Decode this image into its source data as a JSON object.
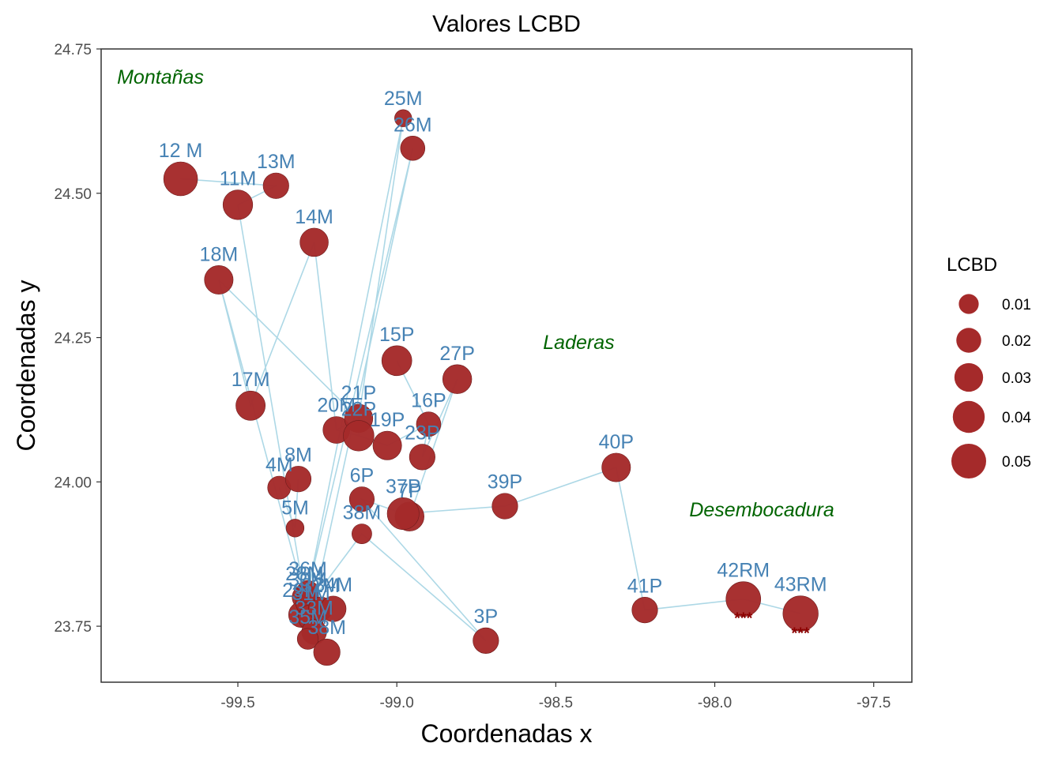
{
  "chart_data": {
    "type": "scatter",
    "title": "Valores LCBD",
    "xlabel": "Coordenadas x",
    "ylabel": "Coordenadas y",
    "xlim": [
      -99.93,
      -97.38
    ],
    "ylim": [
      23.653,
      24.75
    ],
    "x_ticks": [
      -99.5,
      -99.0,
      -98.5,
      -98.0,
      -97.5
    ],
    "x_tick_labels": [
      "-99.5",
      "-99.0",
      "-98.5",
      "-98.0",
      "-97.5"
    ],
    "y_ticks": [
      23.75,
      24.0,
      24.25,
      24.5,
      24.75
    ],
    "y_tick_labels": [
      "23.75",
      "24.00",
      "24.25",
      "24.50",
      "24.75"
    ],
    "grid": false,
    "colors": {
      "point": "#A52A2A",
      "label": "#4682B4",
      "path": "#ADD8E6",
      "region": "#006400",
      "significance": "#8B0000"
    },
    "legend": {
      "title": "LCBD",
      "position": "right",
      "values": [
        0.01,
        0.02,
        0.03,
        0.04,
        0.05
      ],
      "labels": [
        "0.01",
        "0.02",
        "0.03",
        "0.04",
        "0.05"
      ]
    },
    "regions": [
      {
        "label": "Montañas",
        "x": -99.88,
        "y": 24.69
      },
      {
        "label": "Laderas",
        "x": -98.54,
        "y": 24.23
      },
      {
        "label": "Desembocadura",
        "x": -98.08,
        "y": 23.94
      }
    ],
    "points": [
      {
        "label": "3P",
        "x": -98.72,
        "y": 23.725,
        "lcbd": 0.022
      },
      {
        "label": "4M",
        "x": -99.37,
        "y": 23.99,
        "lcbd": 0.016
      },
      {
        "label": "5M",
        "x": -99.32,
        "y": 23.92,
        "lcbd": 0.007
      },
      {
        "label": "6P",
        "x": -99.11,
        "y": 23.97,
        "lcbd": 0.02
      },
      {
        "label": "7P",
        "x": -98.96,
        "y": 23.94,
        "lcbd": 0.031
      },
      {
        "label": "8M",
        "x": -99.31,
        "y": 24.005,
        "lcbd": 0.022
      },
      {
        "label": "11M",
        "x": -99.5,
        "y": 24.48,
        "lcbd": 0.033
      },
      {
        "label": "12 M",
        "x": -99.68,
        "y": 24.525,
        "lcbd": 0.047
      },
      {
        "label": "13M",
        "x": -99.38,
        "y": 24.513,
        "lcbd": 0.022
      },
      {
        "label": "14M",
        "x": -99.26,
        "y": 24.415,
        "lcbd": 0.029
      },
      {
        "label": "15P",
        "x": -99.0,
        "y": 24.21,
        "lcbd": 0.034
      },
      {
        "label": "16P",
        "x": -98.9,
        "y": 24.1,
        "lcbd": 0.019
      },
      {
        "label": "17M",
        "x": -99.46,
        "y": 24.132,
        "lcbd": 0.032
      },
      {
        "label": "18M",
        "x": -99.56,
        "y": 24.35,
        "lcbd": 0.03
      },
      {
        "label": "19P",
        "x": -99.03,
        "y": 24.063,
        "lcbd": 0.03
      },
      {
        "label": "20M",
        "x": -99.19,
        "y": 24.09,
        "lcbd": 0.025
      },
      {
        "label": "21P",
        "x": -99.12,
        "y": 24.11,
        "lcbd": 0.029
      },
      {
        "label": "22P",
        "x": -99.12,
        "y": 24.08,
        "lcbd": 0.036
      },
      {
        "label": "23P",
        "x": -98.92,
        "y": 24.043,
        "lcbd": 0.022
      },
      {
        "label": "25M",
        "x": -98.98,
        "y": 24.63,
        "lcbd": 0.006
      },
      {
        "label": "26M",
        "x": -98.95,
        "y": 24.578,
        "lcbd": 0.019
      },
      {
        "label": "27P",
        "x": -98.81,
        "y": 24.178,
        "lcbd": 0.031
      },
      {
        "label": "28M",
        "x": -99.29,
        "y": 23.8,
        "lcbd": 0.02
      },
      {
        "label": "29M",
        "x": -99.3,
        "y": 23.77,
        "lcbd": 0.022
      },
      {
        "label": "30M",
        "x": -99.28,
        "y": 23.79,
        "lcbd": 0.018
      },
      {
        "label": "31M",
        "x": -99.27,
        "y": 23.765,
        "lcbd": 0.022
      },
      {
        "label": "32M",
        "x": -99.24,
        "y": 23.78,
        "lcbd": 0.018
      },
      {
        "label": "33M",
        "x": -99.26,
        "y": 23.74,
        "lcbd": 0.02
      },
      {
        "label": "34M",
        "x": -99.2,
        "y": 23.78,
        "lcbd": 0.022
      },
      {
        "label": "35M",
        "x": -99.28,
        "y": 23.728,
        "lcbd": 0.012
      },
      {
        "label": "36M",
        "x": -99.28,
        "y": 23.81,
        "lcbd": 0.014
      },
      {
        "label": "37P",
        "x": -98.98,
        "y": 23.945,
        "lcbd": 0.04
      },
      {
        "label": "38M",
        "x": -99.11,
        "y": 23.91,
        "lcbd": 0.01
      },
      {
        "label": "39P",
        "x": -98.66,
        "y": 23.958,
        "lcbd": 0.022
      },
      {
        "label": "40P",
        "x": -98.31,
        "y": 24.025,
        "lcbd": 0.03
      },
      {
        "label": "41P",
        "x": -98.22,
        "y": 23.778,
        "lcbd": 0.022
      },
      {
        "label": "42RM",
        "x": -97.91,
        "y": 23.797,
        "lcbd": 0.05,
        "significance": "***"
      },
      {
        "label": "43RM",
        "x": -97.73,
        "y": 23.772,
        "lcbd": 0.052,
        "significance": "***"
      },
      {
        "label": "38M",
        "x": -99.22,
        "y": 23.705,
        "lcbd": 0.024
      }
    ],
    "path_order": [
      "12 M",
      "13M",
      "11M",
      "28M",
      "18M",
      "17M",
      "14M",
      "20M",
      "21P",
      "25M",
      "36M",
      "26M",
      "31M",
      "34M",
      "35M",
      "33M",
      "29M",
      "38M",
      "3P",
      "6P",
      "37P",
      "39P",
      "40P",
      "41P",
      "42RM",
      "43RM"
    ],
    "secondary_paths": [
      [
        "15P",
        "16P",
        "23P",
        "27P",
        "7P"
      ],
      [
        "20M",
        "22P",
        "19P",
        "16P"
      ],
      [
        "18M",
        "21P",
        "22P"
      ],
      [
        "4M",
        "5M",
        "8M"
      ],
      [
        "30M",
        "32M",
        "28M"
      ]
    ]
  }
}
